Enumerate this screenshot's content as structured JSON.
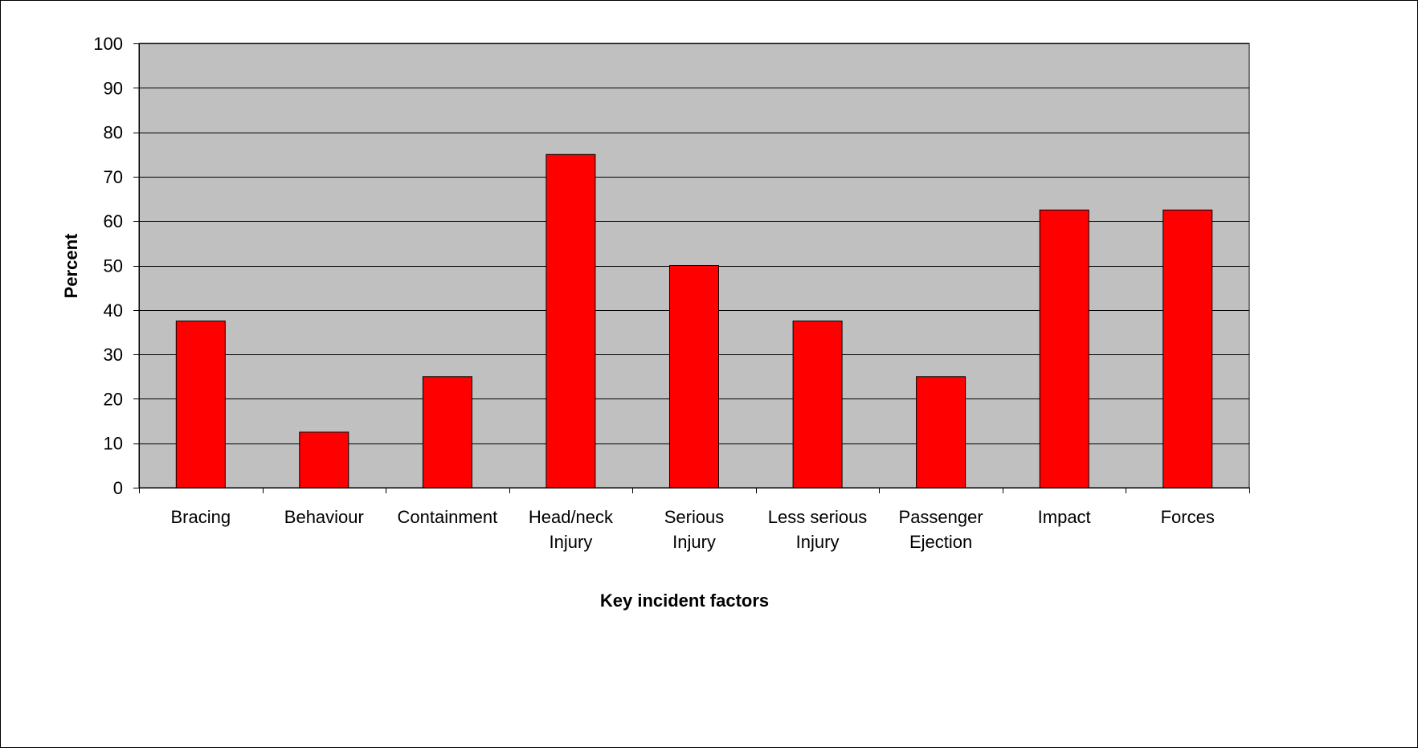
{
  "chart_data": {
    "type": "bar",
    "title": "",
    "xlabel": "Key incident factors",
    "ylabel": "Percent",
    "categories": [
      [
        "Bracing"
      ],
      [
        "Behaviour"
      ],
      [
        "Containment"
      ],
      [
        "Head/neck",
        "Injury"
      ],
      [
        "Serious",
        "Injury"
      ],
      [
        "Less serious",
        "Injury"
      ],
      [
        "Passenger",
        "Ejection"
      ],
      [
        "Impact"
      ],
      [
        "Forces"
      ]
    ],
    "values": [
      37.5,
      12.5,
      25,
      75,
      50,
      37.5,
      25,
      62.5,
      62.5
    ],
    "ylim": [
      0,
      100
    ],
    "yticks": [
      0,
      10,
      20,
      30,
      40,
      50,
      60,
      70,
      80,
      90,
      100
    ],
    "grid": true,
    "legend": "none",
    "colors": {
      "bar_fill": "#ff0000",
      "bar_stroke": "#000000",
      "plot_background": "#c0c0c0",
      "gridline": "#000000",
      "frame": "#000000"
    }
  }
}
